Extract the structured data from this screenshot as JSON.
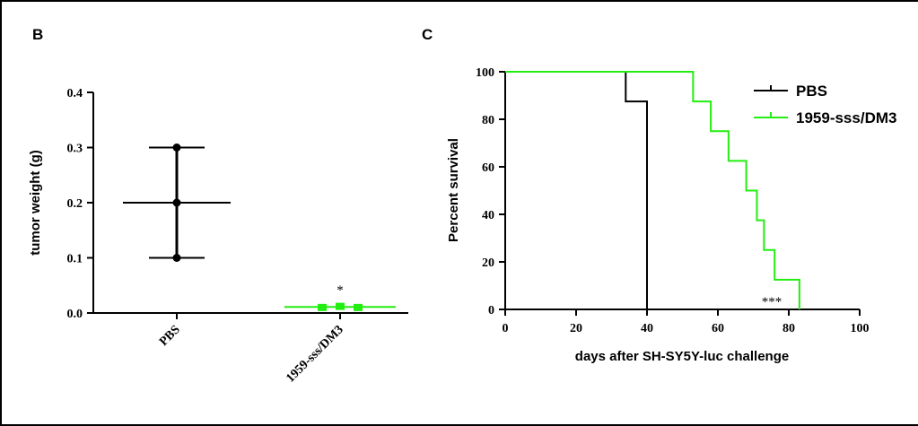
{
  "panels": {
    "b_label": "B",
    "c_label": "C"
  },
  "colors": {
    "pbs": "#000000",
    "treatment": "#22ee11"
  },
  "chart_data": [
    {
      "panel": "B",
      "type": "scatter",
      "categories": [
        "PBS",
        "1959-sss/DM3"
      ],
      "ylabel": "tumor weight (g)",
      "xlabel": "",
      "ylim": [
        0,
        0.4
      ],
      "yticks": [
        "0.0",
        "0.1",
        "0.2",
        "0.3",
        "0.4"
      ],
      "series": [
        {
          "category": "PBS",
          "points": [
            0.1,
            0.2,
            0.3
          ],
          "mean": 0.2,
          "err_low": 0.1,
          "err_high": 0.3,
          "color": "#000000"
        },
        {
          "category": "1959-sss/DM3",
          "points": [
            0.01,
            0.012,
            0.01
          ],
          "mean": 0.011,
          "err_low": 0.009,
          "err_high": 0.013,
          "color": "#22ee11"
        }
      ],
      "annotation": "*"
    },
    {
      "panel": "C",
      "type": "line",
      "xlabel": "days after SH-SY5Y-luc challenge",
      "ylabel": "Percent survival",
      "xlim": [
        0,
        100
      ],
      "ylim": [
        0,
        100
      ],
      "xticks": [
        "0",
        "20",
        "40",
        "60",
        "80",
        "100"
      ],
      "yticks": [
        "0",
        "20",
        "40",
        "60",
        "80",
        "100"
      ],
      "series": [
        {
          "name": "PBS",
          "color": "#000000",
          "steps": [
            [
              0,
              100
            ],
            [
              34,
              87.5
            ],
            [
              40,
              0
            ]
          ]
        },
        {
          "name": "1959-sss/DM3",
          "color": "#22ee11",
          "steps": [
            [
              0,
              100
            ],
            [
              53,
              87.5
            ],
            [
              58,
              75
            ],
            [
              63,
              62.5
            ],
            [
              68,
              50
            ],
            [
              71,
              37.5
            ],
            [
              73,
              25
            ],
            [
              76,
              12.5
            ],
            [
              83,
              0
            ]
          ]
        }
      ],
      "annotation": "***",
      "legend_position": "top-right"
    }
  ]
}
